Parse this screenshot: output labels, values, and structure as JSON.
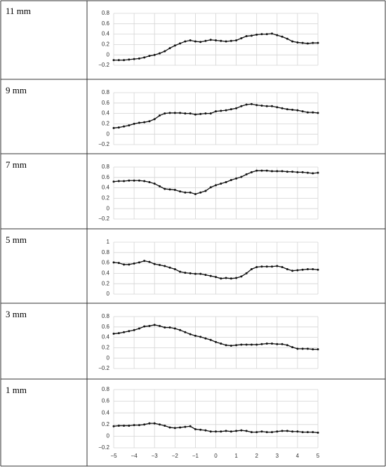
{
  "chart_data": [
    {
      "type": "line",
      "title": "11 mm",
      "color": "#111111",
      "xlim": [
        -5,
        5
      ],
      "ylim": [
        -0.2,
        0.8
      ],
      "yticks": [
        {
          "value": -0.2,
          "label": "−0.2"
        },
        0,
        0.2,
        0.4,
        0.6,
        0.8
      ],
      "grid": true,
      "x": [
        -5,
        -4.75,
        -4.5,
        -4.25,
        -4,
        -3.75,
        -3.5,
        -3.25,
        -3,
        -2.75,
        -2.5,
        -2.25,
        -2,
        -1.75,
        -1.5,
        -1.25,
        -1,
        -0.75,
        -0.5,
        -0.25,
        0,
        0.25,
        0.5,
        0.75,
        1,
        1.25,
        1.5,
        1.75,
        2,
        2.25,
        2.5,
        2.75,
        3,
        3.25,
        3.5,
        3.75,
        4,
        4.25,
        4.5,
        4.75,
        5
      ],
      "values": [
        -0.1,
        -0.1,
        -0.1,
        -0.09,
        -0.08,
        -0.07,
        -0.05,
        -0.02,
        0.0,
        0.03,
        0.07,
        0.13,
        0.18,
        0.22,
        0.26,
        0.28,
        0.26,
        0.25,
        0.27,
        0.29,
        0.28,
        0.27,
        0.26,
        0.27,
        0.28,
        0.32,
        0.36,
        0.37,
        0.39,
        0.4,
        0.4,
        0.41,
        0.38,
        0.35,
        0.31,
        0.26,
        0.24,
        0.23,
        0.22,
        0.23,
        0.23
      ]
    },
    {
      "type": "line",
      "title": "9 mm",
      "color": "#111111",
      "xlim": [
        -5,
        5
      ],
      "ylim": [
        -0.2,
        0.8
      ],
      "yticks": [
        {
          "value": -0.2,
          "label": "−0.2"
        },
        0,
        0.2,
        0.4,
        0.6,
        0.8
      ],
      "grid": true,
      "x": [
        -5,
        -4.75,
        -4.5,
        -4.25,
        -4,
        -3.75,
        -3.5,
        -3.25,
        -3,
        -2.75,
        -2.5,
        -2.25,
        -2,
        -1.75,
        -1.5,
        -1.25,
        -1,
        -0.75,
        -0.5,
        -0.25,
        0,
        0.25,
        0.5,
        0.75,
        1,
        1.25,
        1.5,
        1.75,
        2,
        2.25,
        2.5,
        2.75,
        3,
        3.25,
        3.5,
        3.75,
        4,
        4.25,
        4.5,
        4.75,
        5
      ],
      "values": [
        0.12,
        0.13,
        0.15,
        0.17,
        0.2,
        0.22,
        0.23,
        0.25,
        0.29,
        0.36,
        0.4,
        0.41,
        0.41,
        0.41,
        0.4,
        0.4,
        0.38,
        0.39,
        0.4,
        0.4,
        0.44,
        0.45,
        0.46,
        0.48,
        0.5,
        0.54,
        0.57,
        0.58,
        0.56,
        0.55,
        0.54,
        0.54,
        0.52,
        0.5,
        0.48,
        0.47,
        0.46,
        0.44,
        0.42,
        0.42,
        0.41
      ]
    },
    {
      "type": "line",
      "title": "7 mm",
      "color": "#111111",
      "xlim": [
        -5,
        5
      ],
      "ylim": [
        -0.2,
        0.8
      ],
      "yticks": [
        {
          "value": -0.2,
          "label": "−0.2"
        },
        0,
        0.2,
        0.4,
        0.6,
        0.8
      ],
      "grid": true,
      "x": [
        -5,
        -4.75,
        -4.5,
        -4.25,
        -4,
        -3.75,
        -3.5,
        -3.25,
        -3,
        -2.75,
        -2.5,
        -2.25,
        -2,
        -1.75,
        -1.5,
        -1.25,
        -1,
        -0.75,
        -0.5,
        -0.25,
        0,
        0.25,
        0.5,
        0.75,
        1,
        1.25,
        1.5,
        1.75,
        2,
        2.25,
        2.5,
        2.75,
        3,
        3.25,
        3.5,
        3.75,
        4,
        4.25,
        4.5,
        4.75,
        5
      ],
      "values": [
        0.52,
        0.53,
        0.53,
        0.54,
        0.54,
        0.54,
        0.53,
        0.51,
        0.48,
        0.43,
        0.38,
        0.37,
        0.36,
        0.33,
        0.31,
        0.31,
        0.28,
        0.31,
        0.34,
        0.41,
        0.45,
        0.48,
        0.51,
        0.55,
        0.58,
        0.61,
        0.66,
        0.7,
        0.73,
        0.73,
        0.73,
        0.72,
        0.72,
        0.72,
        0.71,
        0.71,
        0.7,
        0.7,
        0.69,
        0.68,
        0.69
      ]
    },
    {
      "type": "line",
      "title": "5 mm",
      "color": "#111111",
      "xlim": [
        -5,
        5
      ],
      "ylim": [
        0,
        1
      ],
      "yticks": [
        0,
        0.2,
        0.4,
        0.6,
        0.8,
        1
      ],
      "grid": true,
      "x": [
        -5,
        -4.75,
        -4.5,
        -4.25,
        -4,
        -3.75,
        -3.5,
        -3.25,
        -3,
        -2.75,
        -2.5,
        -2.25,
        -2,
        -1.75,
        -1.5,
        -1.25,
        -1,
        -0.75,
        -0.5,
        -0.25,
        0,
        0.25,
        0.5,
        0.75,
        1,
        1.25,
        1.5,
        1.75,
        2,
        2.25,
        2.5,
        2.75,
        3,
        3.25,
        3.5,
        3.75,
        4,
        4.25,
        4.5,
        4.75,
        5
      ],
      "values": [
        0.61,
        0.6,
        0.57,
        0.57,
        0.59,
        0.61,
        0.64,
        0.62,
        0.58,
        0.56,
        0.54,
        0.51,
        0.48,
        0.43,
        0.41,
        0.4,
        0.39,
        0.39,
        0.37,
        0.35,
        0.33,
        0.3,
        0.31,
        0.3,
        0.31,
        0.34,
        0.4,
        0.48,
        0.52,
        0.53,
        0.53,
        0.53,
        0.54,
        0.52,
        0.48,
        0.45,
        0.46,
        0.47,
        0.48,
        0.48,
        0.47
      ]
    },
    {
      "type": "line",
      "title": "3 mm",
      "color": "#111111",
      "xlim": [
        -5,
        5
      ],
      "ylim": [
        -0.2,
        0.8
      ],
      "yticks": [
        {
          "value": -0.2,
          "label": "−0.2"
        },
        0,
        0.2,
        0.4,
        0.6,
        0.8
      ],
      "grid": true,
      "x": [
        -5,
        -4.75,
        -4.5,
        -4.25,
        -4,
        -3.75,
        -3.5,
        -3.25,
        -3,
        -2.75,
        -2.5,
        -2.25,
        -2,
        -1.75,
        -1.5,
        -1.25,
        -1,
        -0.75,
        -0.5,
        -0.25,
        0,
        0.25,
        0.5,
        0.75,
        1,
        1.25,
        1.5,
        1.75,
        2,
        2.25,
        2.5,
        2.75,
        3,
        3.25,
        3.5,
        3.75,
        4,
        4.25,
        4.5,
        4.75,
        5
      ],
      "values": [
        0.47,
        0.48,
        0.5,
        0.52,
        0.54,
        0.57,
        0.61,
        0.62,
        0.64,
        0.62,
        0.59,
        0.59,
        0.57,
        0.54,
        0.5,
        0.46,
        0.43,
        0.41,
        0.38,
        0.35,
        0.31,
        0.28,
        0.25,
        0.24,
        0.25,
        0.26,
        0.26,
        0.26,
        0.26,
        0.27,
        0.28,
        0.28,
        0.27,
        0.27,
        0.25,
        0.21,
        0.18,
        0.18,
        0.18,
        0.17,
        0.17
      ]
    },
    {
      "type": "line",
      "title": "1 mm",
      "color": "#111111",
      "xlim": [
        -5,
        5
      ],
      "ylim": [
        -0.2,
        0.8
      ],
      "yticks": [
        {
          "value": -0.2,
          "label": "−0.2"
        },
        0,
        0.2,
        0.4,
        0.6,
        0.8
      ],
      "grid": true,
      "xticks": [
        {
          "value": -5,
          "label": "−5"
        },
        {
          "value": -4,
          "label": "−4"
        },
        {
          "value": -3,
          "label": "−3"
        },
        {
          "value": -2,
          "label": "−2"
        },
        {
          "value": -1,
          "label": "−1"
        },
        0,
        1,
        2,
        3,
        4,
        5
      ],
      "x": [
        -5,
        -4.75,
        -4.5,
        -4.25,
        -4,
        -3.75,
        -3.5,
        -3.25,
        -3,
        -2.75,
        -2.5,
        -2.25,
        -2,
        -1.75,
        -1.5,
        -1.25,
        -1,
        -0.75,
        -0.5,
        -0.25,
        0,
        0.25,
        0.5,
        0.75,
        1,
        1.25,
        1.5,
        1.75,
        2,
        2.25,
        2.5,
        2.75,
        3,
        3.25,
        3.5,
        3.75,
        4,
        4.25,
        4.5,
        4.75,
        5
      ],
      "values": [
        0.17,
        0.18,
        0.18,
        0.18,
        0.19,
        0.19,
        0.2,
        0.22,
        0.22,
        0.2,
        0.18,
        0.15,
        0.14,
        0.15,
        0.16,
        0.17,
        0.12,
        0.11,
        0.1,
        0.08,
        0.08,
        0.08,
        0.09,
        0.08,
        0.09,
        0.1,
        0.09,
        0.07,
        0.07,
        0.08,
        0.07,
        0.07,
        0.08,
        0.09,
        0.09,
        0.08,
        0.08,
        0.07,
        0.07,
        0.07,
        0.06
      ]
    }
  ]
}
